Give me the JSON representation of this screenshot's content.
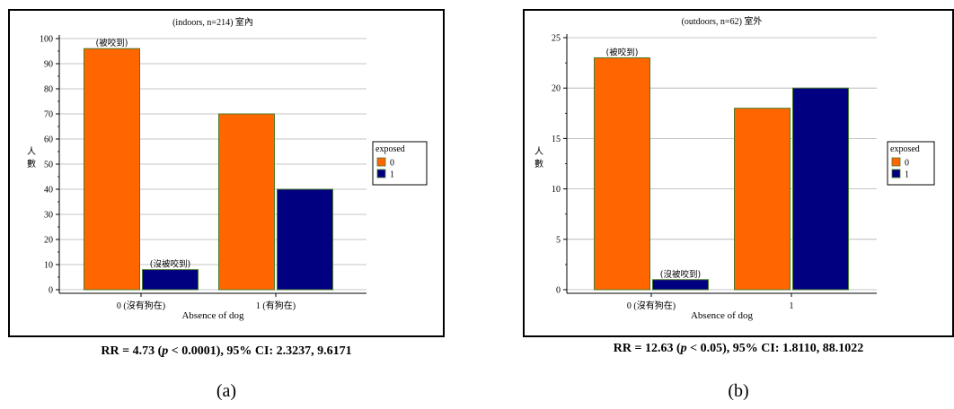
{
  "chart_data": [
    {
      "type": "bar",
      "title": "(indoors, n=214) 室內",
      "xlabel": "Absence of dog",
      "ylabel": "人數",
      "categories": [
        "0 (沒有狗在)",
        "1 (有狗在)"
      ],
      "series": [
        {
          "name": "0",
          "values": [
            96,
            70
          ],
          "color": "#FF6600"
        },
        {
          "name": "1",
          "values": [
            8,
            40
          ],
          "color": "#000080"
        }
      ],
      "ylim": [
        0,
        100
      ],
      "yticks": [
        0,
        10,
        20,
        30,
        40,
        50,
        60,
        70,
        80,
        90,
        100
      ],
      "legend": {
        "title": "exposed",
        "position": "right"
      },
      "annotations": [
        {
          "text": "(被咬到)",
          "category": 0,
          "series": 0
        },
        {
          "text": "(沒被咬到)",
          "category": 0,
          "series": 1
        }
      ],
      "grid": true,
      "caption": "RR = 4.73 (p < 0.0001), 95% CI: 2.3237, 9.6171",
      "caption_parts": {
        "pre": "RR = 4.73 (",
        "p": "p",
        "post": " < 0.0001), 95% CI: 2.3237, 9.6171"
      },
      "panel_label": "(a)"
    },
    {
      "type": "bar",
      "title": "(outdoors, n=62) 室外",
      "xlabel": "Absence of dog",
      "ylabel": "人數",
      "categories": [
        "0 (沒有狗在)",
        "1"
      ],
      "series": [
        {
          "name": "0",
          "values": [
            23,
            18
          ],
          "color": "#FF6600"
        },
        {
          "name": "1",
          "values": [
            1,
            20
          ],
          "color": "#000080"
        }
      ],
      "ylim": [
        0,
        25
      ],
      "yticks": [
        0,
        5,
        10,
        15,
        20,
        25
      ],
      "legend": {
        "title": "exposed",
        "position": "right"
      },
      "annotations": [
        {
          "text": "(被咬到)",
          "category": 0,
          "series": 0
        },
        {
          "text": "(沒被咬到)",
          "category": 0,
          "series": 1
        }
      ],
      "grid": true,
      "caption": "RR = 12.63 (p < 0.05), 95% CI: 1.8110, 88.1022",
      "caption_parts": {
        "pre": "RR = 12.63 (",
        "p": "p",
        "post": " < 0.05), 95% CI: 1.8110, 88.1022"
      },
      "panel_label": "(b)"
    }
  ]
}
